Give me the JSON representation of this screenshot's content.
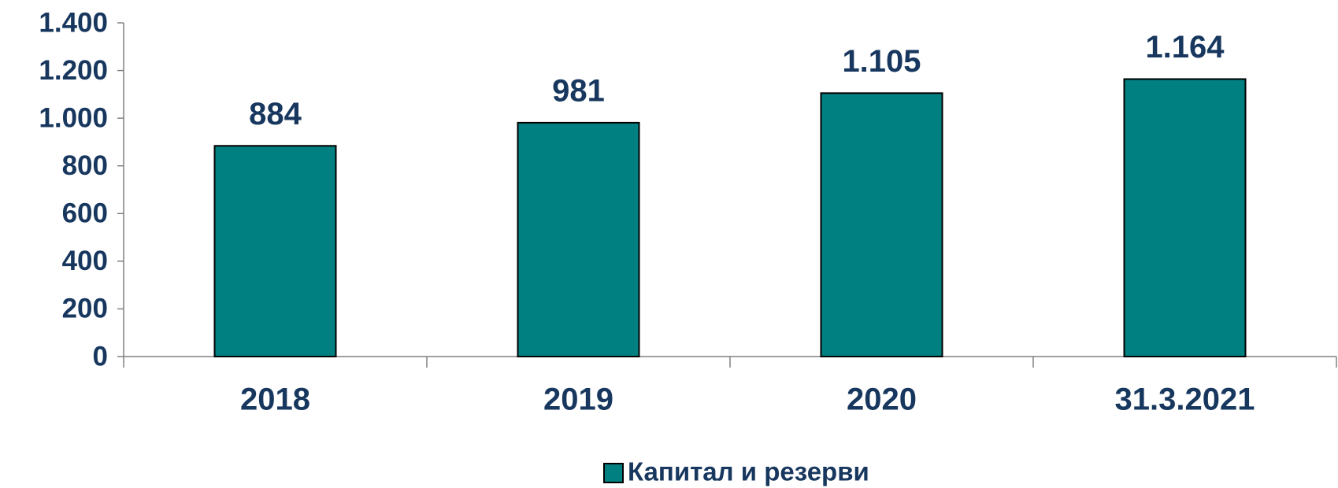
{
  "chart_data": {
    "type": "bar",
    "categories": [
      "2018",
      "2019",
      "2020",
      "31.3.2021"
    ],
    "series": [
      {
        "name": "Капитал и резерви",
        "color": "#008080",
        "values": [
          884,
          981,
          1105,
          1164
        ],
        "value_labels": [
          "884",
          "981",
          "1.105",
          "1.164"
        ]
      }
    ],
    "ylim": [
      0,
      1400
    ],
    "yticks": [
      0,
      200,
      400,
      600,
      800,
      {
        "value": 1000,
        "label": "1.000"
      },
      {
        "value": 1200,
        "label": "1.200"
      },
      {
        "value": 1400,
        "label": "1.400"
      }
    ],
    "grid": false,
    "legend": "bottom"
  }
}
